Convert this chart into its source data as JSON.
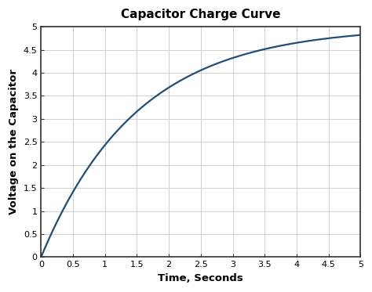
{
  "title": "Capacitor Charge Curve",
  "xlabel": "Time, Seconds",
  "ylabel": "Voltage on the Capacitor",
  "xlim": [
    0,
    5
  ],
  "ylim": [
    0,
    5
  ],
  "xticks": [
    0,
    0.5,
    1,
    1.5,
    2,
    2.5,
    3,
    3.5,
    4,
    4.5,
    5
  ],
  "yticks": [
    0,
    0.5,
    1,
    1.5,
    2,
    2.5,
    3,
    3.5,
    4,
    4.5,
    5
  ],
  "Vs": 5.0,
  "RC": 1.5,
  "line_color": "#1f4e79",
  "line_width": 1.6,
  "grid_color": "#c8c8c8",
  "grid_linewidth": 0.6,
  "bg_color": "#ffffff",
  "plot_bg_color": "#f5f5f5",
  "title_fontsize": 11,
  "label_fontsize": 9.5,
  "tick_fontsize": 8,
  "spine_color": "#333333",
  "spine_linewidth": 1.2
}
